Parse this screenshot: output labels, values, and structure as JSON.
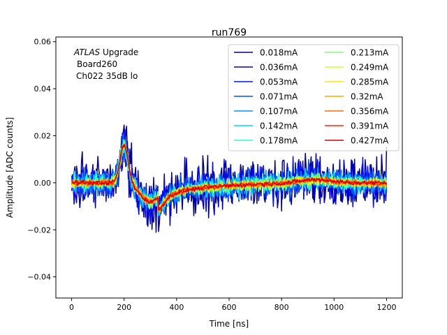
{
  "chart_data": {
    "type": "line",
    "title": "run769",
    "xlabel": "Time [ns]",
    "ylabel": "Amplitude [ADC counts]",
    "xlim": [
      -60,
      1260
    ],
    "ylim": [
      -0.049,
      0.062
    ],
    "xticks": [
      0,
      200,
      400,
      600,
      800,
      1000,
      1200
    ],
    "xtick_labels": [
      "0",
      "200",
      "400",
      "600",
      "800",
      "1000",
      "1200"
    ],
    "yticks": [
      -0.04,
      -0.02,
      0.0,
      0.02,
      0.04,
      0.06
    ],
    "ytick_labels": [
      "−0.04",
      "−0.02",
      "0.00",
      "0.02",
      "0.04",
      "0.06"
    ],
    "annotation": {
      "italic_word": "ATLAS",
      "line1_rest": " Upgrade",
      "line2": "Board260",
      "line3": "Ch022 35dB lo"
    },
    "legend_position": "top-right",
    "legend_columns": 2,
    "waveform_shape": {
      "x_start": 0,
      "x_end": 1200,
      "x_step": 3.125,
      "baseline": 0.0,
      "peak": {
        "x": 200,
        "y": 0.016
      },
      "undershoot": {
        "x": 300,
        "y": -0.008
      }
    },
    "series": [
      {
        "name": "0.018mA",
        "color": "#00008f",
        "noise": 0.012
      },
      {
        "name": "0.036mA",
        "color": "#0000d4",
        "noise": 0.0095
      },
      {
        "name": "0.053mA",
        "color": "#0010ff",
        "noise": 0.0078
      },
      {
        "name": "0.071mA",
        "color": "#0050ff",
        "noise": 0.0065
      },
      {
        "name": "0.107mA",
        "color": "#0090ff",
        "noise": 0.0052
      },
      {
        "name": "0.142mA",
        "color": "#00d4ff",
        "noise": 0.0042
      },
      {
        "name": "0.178mA",
        "color": "#29ffce",
        "noise": 0.0034
      },
      {
        "name": "0.213mA",
        "color": "#7dff7a",
        "noise": 0.0028
      },
      {
        "name": "0.249mA",
        "color": "#ceff29",
        "noise": 0.0023
      },
      {
        "name": "0.285mA",
        "color": "#ffe500",
        "noise": 0.0019
      },
      {
        "name": "0.32mA",
        "color": "#ffa700",
        "noise": 0.0016
      },
      {
        "name": "0.356mA",
        "color": "#ff6800",
        "noise": 0.0013
      },
      {
        "name": "0.391mA",
        "color": "#ff2900",
        "noise": 0.0011
      },
      {
        "name": "0.427mA",
        "color": "#d40000",
        "noise": 0.001
      }
    ]
  }
}
